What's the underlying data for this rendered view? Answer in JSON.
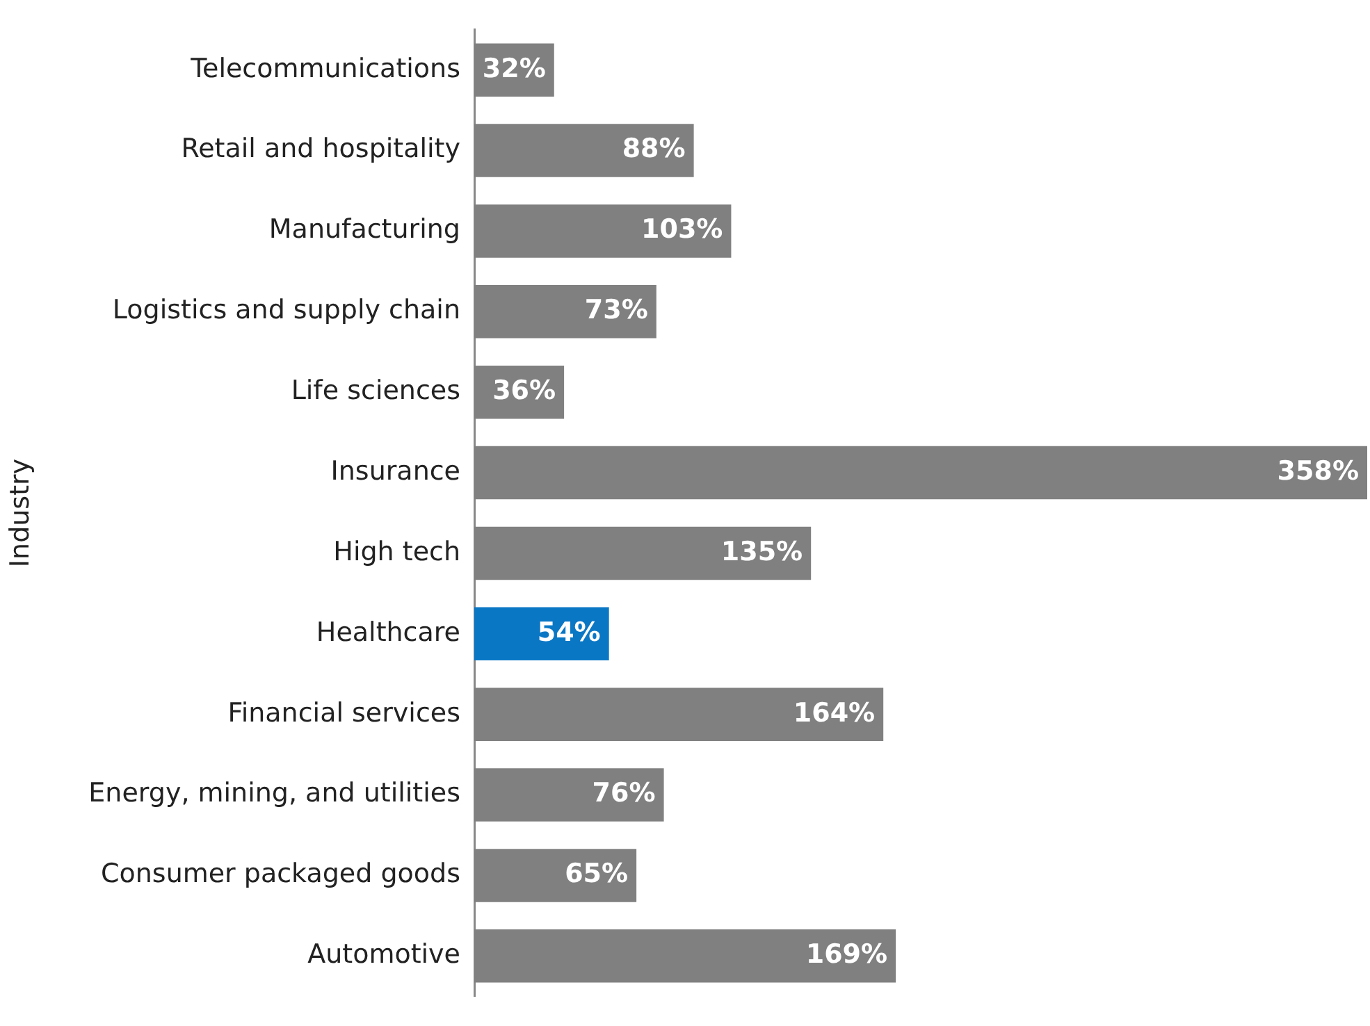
{
  "chart_data": {
    "type": "bar",
    "orientation": "horizontal",
    "ylabel": "Industry",
    "categories": [
      "Telecommunications",
      "Retail and hospitality",
      "Manufacturing",
      "Logistics and supply chain",
      "Life sciences",
      "Insurance",
      "High tech",
      "Healthcare",
      "Financial services",
      "Energy, mining, and utilities",
      "Consumer packaged goods",
      "Automotive"
    ],
    "values": [
      32,
      88,
      103,
      73,
      36,
      358,
      135,
      54,
      164,
      76,
      65,
      169
    ],
    "colors": [
      "#808080",
      "#808080",
      "#808080",
      "#808080",
      "#808080",
      "#808080",
      "#808080",
      "#0a77c5",
      "#808080",
      "#808080",
      "#808080",
      "#808080"
    ],
    "value_labels": [
      "32%",
      "88%",
      "103%",
      "73%",
      "36%",
      "358%",
      "135%",
      "54%",
      "164%",
      "76%",
      "65%",
      "169%"
    ],
    "data_labels": false
  }
}
